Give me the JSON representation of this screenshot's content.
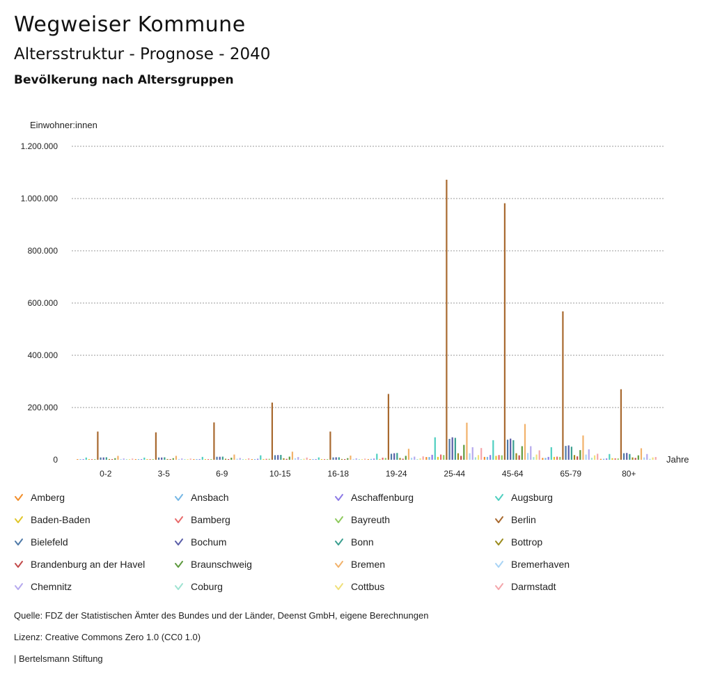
{
  "header": {
    "title": "Wegweiser Kommune",
    "subtitle": "Altersstruktur - Prognose - 2040",
    "subsubtitle": "Bevölkerung nach Altersgruppen"
  },
  "chart_data": {
    "type": "bar",
    "title": "Bevölkerung nach Altersgruppen",
    "ylabel": "Einwohner:innen",
    "xlabel": "Jahre",
    "ylim": [
      0,
      1200000
    ],
    "yticks": [
      0,
      200000,
      400000,
      600000,
      800000,
      1000000,
      1200000
    ],
    "ytick_labels": [
      "0",
      "200.000",
      "400.000",
      "600.000",
      "800.000",
      "1.000.000",
      "1.200.000"
    ],
    "grid": true,
    "legend_position": "bottom",
    "categories": [
      "0-2",
      "3-5",
      "6-9",
      "10-15",
      "16-18",
      "19-24",
      "25-44",
      "45-64",
      "65-79",
      "80+"
    ],
    "series": [
      {
        "name": "Amberg",
        "color": "#f28e2b",
        "values": [
          1100,
          1100,
          1500,
          2300,
          1200,
          2600,
          10500,
          11000,
          7000,
          3500
        ]
      },
      {
        "name": "Ansbach",
        "color": "#76b7e5",
        "values": [
          1100,
          1100,
          1500,
          2400,
          1300,
          3200,
          10500,
          11000,
          6900,
          3600
        ]
      },
      {
        "name": "Aschaffenburg",
        "color": "#8c7ae6",
        "values": [
          2000,
          2000,
          2600,
          3900,
          2000,
          4500,
          19000,
          18000,
          11000,
          5000
        ]
      },
      {
        "name": "Augsburg",
        "color": "#4fcfc0",
        "values": [
          8500,
          8300,
          11000,
          17000,
          9000,
          23000,
          86000,
          75000,
          48000,
          22000
        ]
      },
      {
        "name": "Baden-Baden",
        "color": "#e0c62a",
        "values": [
          1200,
          1300,
          1800,
          2800,
          1500,
          3000,
          11000,
          15000,
          11000,
          6000
        ]
      },
      {
        "name": "Bamberg",
        "color": "#e86b6b",
        "values": [
          1800,
          1800,
          2400,
          3600,
          2000,
          8000,
          20000,
          18000,
          12000,
          5500
        ]
      },
      {
        "name": "Bayreuth",
        "color": "#8fca5e",
        "values": [
          1800,
          1800,
          2400,
          3600,
          1900,
          6800,
          18000,
          17000,
          11000,
          5000
        ]
      },
      {
        "name": "Berlin",
        "color": "#a8692f",
        "values": [
          108000,
          105000,
          143000,
          219000,
          108000,
          252000,
          1072000,
          982000,
          568000,
          270000
        ]
      },
      {
        "name": "Bielefeld",
        "color": "#4e79a7",
        "values": [
          8800,
          8700,
          11500,
          17500,
          9000,
          23000,
          80000,
          77000,
          53000,
          25000
        ]
      },
      {
        "name": "Bochum",
        "color": "#5a5ea8",
        "values": [
          9000,
          8700,
          11500,
          18000,
          9500,
          25000,
          86000,
          81000,
          55000,
          26000
        ]
      },
      {
        "name": "Bonn",
        "color": "#3a9e8f",
        "values": [
          9500,
          9400,
          12000,
          18500,
          9500,
          26000,
          84000,
          75000,
          50000,
          22000
        ]
      },
      {
        "name": "Bottrop",
        "color": "#9a8a1c",
        "values": [
          2800,
          2800,
          3800,
          5800,
          3000,
          7000,
          25000,
          25000,
          18000,
          9000
        ]
      },
      {
        "name": "Brandenburg an der Havel",
        "color": "#c24a4a",
        "values": [
          1600,
          1600,
          2200,
          3400,
          1800,
          4000,
          15000,
          17000,
          13000,
          7000
        ]
      },
      {
        "name": "Braunschweig",
        "color": "#5e9a3e",
        "values": [
          6000,
          6000,
          7800,
          12000,
          6200,
          15000,
          57000,
          52000,
          37000,
          17000
        ]
      },
      {
        "name": "Bremen",
        "color": "#f2b26b",
        "values": [
          15000,
          15000,
          20000,
          31000,
          16000,
          42000,
          142000,
          137000,
          93000,
          44000
        ]
      },
      {
        "name": "Bremerhaven",
        "color": "#a9d4f5",
        "values": [
          2800,
          2800,
          3800,
          5800,
          3000,
          7500,
          25000,
          26000,
          20000,
          9000
        ]
      },
      {
        "name": "Chemnitz",
        "color": "#b6a9ee",
        "values": [
          5000,
          5000,
          6800,
          10500,
          5500,
          12000,
          48000,
          52000,
          40000,
          22000
        ]
      },
      {
        "name": "Coburg",
        "color": "#9fe3d2",
        "values": [
          1000,
          1000,
          1400,
          2100,
          1100,
          2500,
          9500,
          10500,
          7500,
          3500
        ]
      },
      {
        "name": "Cottbus",
        "color": "#f0e07a",
        "values": [
          1800,
          1800,
          2500,
          3900,
          2000,
          5500,
          18000,
          20000,
          17000,
          9000
        ]
      },
      {
        "name": "Darmstadt",
        "color": "#f4a6ab",
        "values": [
          4500,
          4400,
          5600,
          8500,
          4300,
          13000,
          45000,
          36000,
          23000,
          10500
        ]
      }
    ]
  },
  "legend": {
    "items": [
      "Amberg",
      "Ansbach",
      "Aschaffenburg",
      "Augsburg",
      "Baden-Baden",
      "Bamberg",
      "Bayreuth",
      "Berlin",
      "Bielefeld",
      "Bochum",
      "Bonn",
      "Bottrop",
      "Brandenburg an der Havel",
      "Braunschweig",
      "Bremen",
      "Bremerhaven",
      "Chemnitz",
      "Coburg",
      "Cottbus",
      "Darmstadt"
    ]
  },
  "footer": {
    "source": "Quelle: FDZ der Statistischen Ämter des Bundes und der Länder, Deenst GmbH, eigene Berechnungen",
    "license": "Lizenz: Creative Commons Zero 1.0 (CC0 1.0)",
    "publisher": "| Bertelsmann Stiftung"
  }
}
